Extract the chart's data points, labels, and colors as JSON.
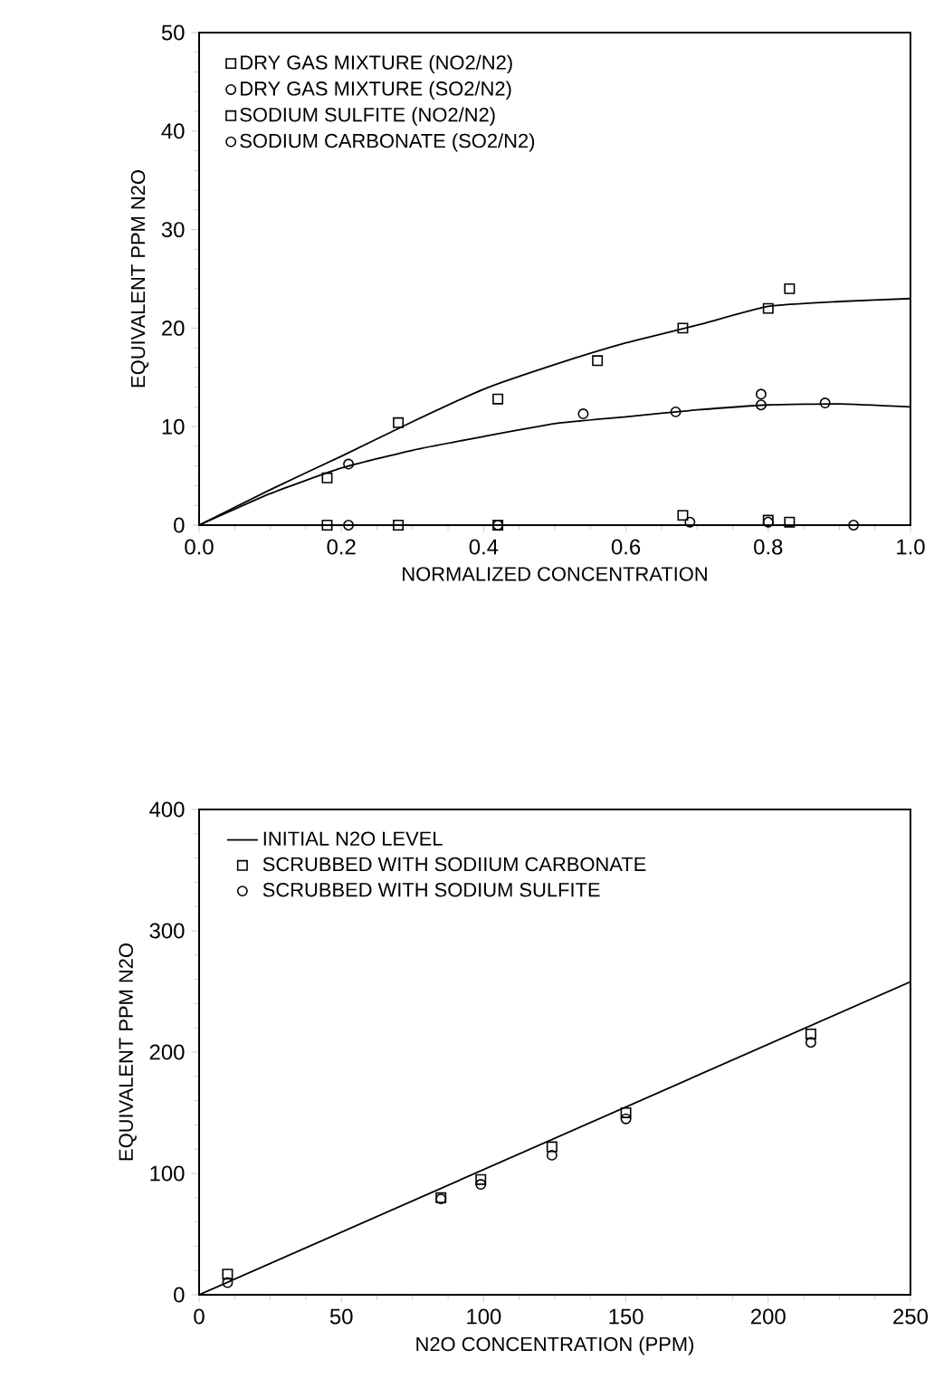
{
  "chart_data": [
    {
      "type": "scatter",
      "xlabel": "NORMALIZED CONCENTRATION",
      "ylabel": "EQUIVALENT PPM N2O",
      "xlim": [
        0,
        1
      ],
      "ylim": [
        0,
        50
      ],
      "xticks": [
        {
          "value": 0,
          "label": "0.0"
        },
        {
          "value": 0.2,
          "label": "0.2"
        },
        {
          "value": 0.4,
          "label": "0.4"
        },
        {
          "value": 0.6,
          "label": "0.6"
        },
        {
          "value": 0.8,
          "label": "0.8"
        },
        {
          "value": 1,
          "label": "1.0"
        }
      ],
      "yticks": [
        0,
        10,
        20,
        30,
        40,
        50
      ],
      "legend": "top left",
      "grid": false,
      "series": [
        {
          "name": "DRY GAS MIXTURE (NO2/N2)",
          "marker": "square",
          "color": "#000000",
          "x": [
            0.18,
            0.28,
            0.42,
            0.56,
            0.68,
            0.8,
            0.83
          ],
          "values": [
            4.8,
            10.4,
            12.8,
            16.7,
            20,
            22,
            24
          ]
        },
        {
          "name": "DRY GAS MIXTURE (SO2/N2)",
          "marker": "circle",
          "color": "#000000",
          "x": [
            0.21,
            0.54,
            0.67,
            0.79,
            0.79,
            0.88
          ],
          "values": [
            6.2,
            11.3,
            11.5,
            13.3,
            12.2,
            12.4
          ]
        },
        {
          "name": "SODIUM SULFITE (NO2/N2)",
          "marker": "square",
          "color": "#000000",
          "x": [
            0.18,
            0.28,
            0.42,
            0.68,
            0.8,
            0.83
          ],
          "values": [
            0,
            0,
            0,
            1,
            0.5,
            0.3
          ]
        },
        {
          "name": "SODIUM CARBONATE (SO2/N2)",
          "marker": "circle",
          "color": "#000000",
          "x": [
            0.21,
            0.42,
            0.69,
            0.8,
            0.92
          ],
          "values": [
            0,
            0,
            0.3,
            0.3,
            0
          ]
        },
        {
          "type": "line",
          "marker": "none",
          "color": "#000000",
          "x": [
            0,
            0.1,
            0.2,
            0.3,
            0.4,
            0.5,
            0.6,
            0.7,
            0.8,
            0.9,
            1
          ],
          "values": [
            0,
            3.6,
            7,
            10.5,
            13.8,
            16.3,
            18.5,
            20.3,
            22.2,
            22.7,
            23
          ]
        },
        {
          "type": "line",
          "marker": "none",
          "color": "#000000",
          "x": [
            0,
            0.1,
            0.2,
            0.3,
            0.4,
            0.5,
            0.6,
            0.7,
            0.8,
            0.9,
            1
          ],
          "values": [
            0,
            3.2,
            5.8,
            7.6,
            9,
            10.3,
            11,
            11.7,
            12.2,
            12.3,
            12
          ]
        }
      ]
    },
    {
      "type": "scatter",
      "xlabel": "N2O CONCENTRATION (PPM)",
      "ylabel": "EQUIVALENT PPM N2O",
      "xlim": [
        0,
        250
      ],
      "ylim": [
        0,
        400
      ],
      "xticks": [
        0,
        50,
        100,
        150,
        200,
        250
      ],
      "yticks": [
        0,
        100,
        200,
        300,
        400
      ],
      "legend": "top left",
      "grid": false,
      "series": [
        {
          "name": "INITIAL N2O LEVEL",
          "type": "line",
          "marker": "none",
          "color": "#000000",
          "x": [
            0,
            250
          ],
          "values": [
            0,
            258
          ]
        },
        {
          "name": "SCRUBBED WITH SODIIUM CARBONATE",
          "marker": "square",
          "color": "#000000",
          "x": [
            10,
            85,
            99,
            124,
            150,
            215
          ],
          "values": [
            17,
            80,
            95,
            122,
            150,
            215
          ]
        },
        {
          "name": "SCRUBBED WITH  SODIUM SULFITE",
          "marker": "circle",
          "color": "#000000",
          "x": [
            10,
            85,
            99,
            124,
            150,
            215
          ],
          "values": [
            10,
            79,
            91,
            115,
            145,
            208
          ]
        }
      ]
    }
  ]
}
